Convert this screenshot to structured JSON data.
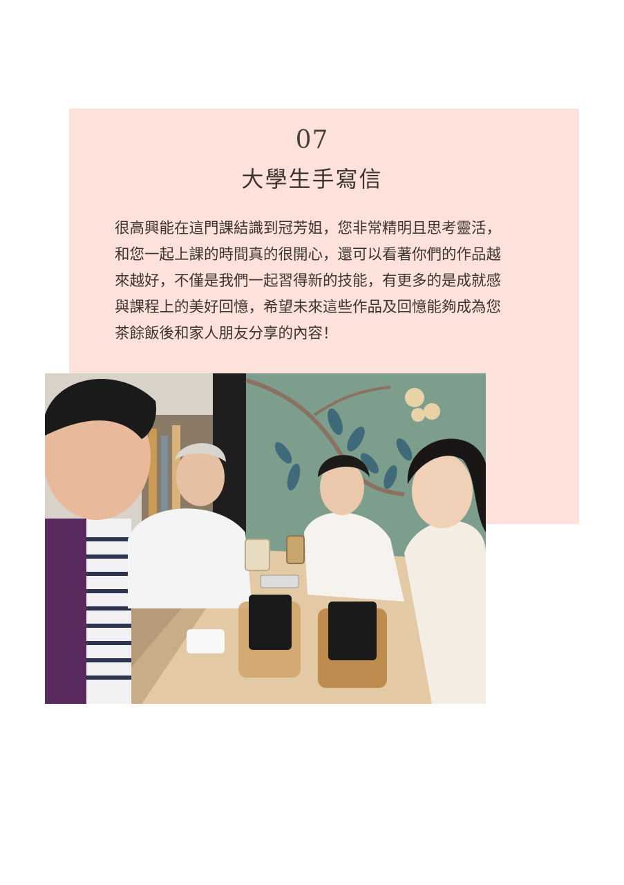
{
  "section": {
    "number": "07",
    "title": "大學生手寫信"
  },
  "letter": {
    "lines": [
      "很高興能在這門課結識到冠芳姐，您非常精明且思考靈活，",
      "和您一起上課的時間真的很開心，還可以看著你們的作品越",
      "來越好，不僅是我們一起習得新的技能，有更多的是成就感",
      "與課程上的美好回憶，希望未來這些作品及回憶能夠成為您",
      "茶餘飯後和家人朋友分享的內容！"
    ]
  },
  "colors": {
    "card_bg": "#fde2dc",
    "text": "#3d3430",
    "mural": "#7d9e8c",
    "table": "#e3c9a4"
  }
}
